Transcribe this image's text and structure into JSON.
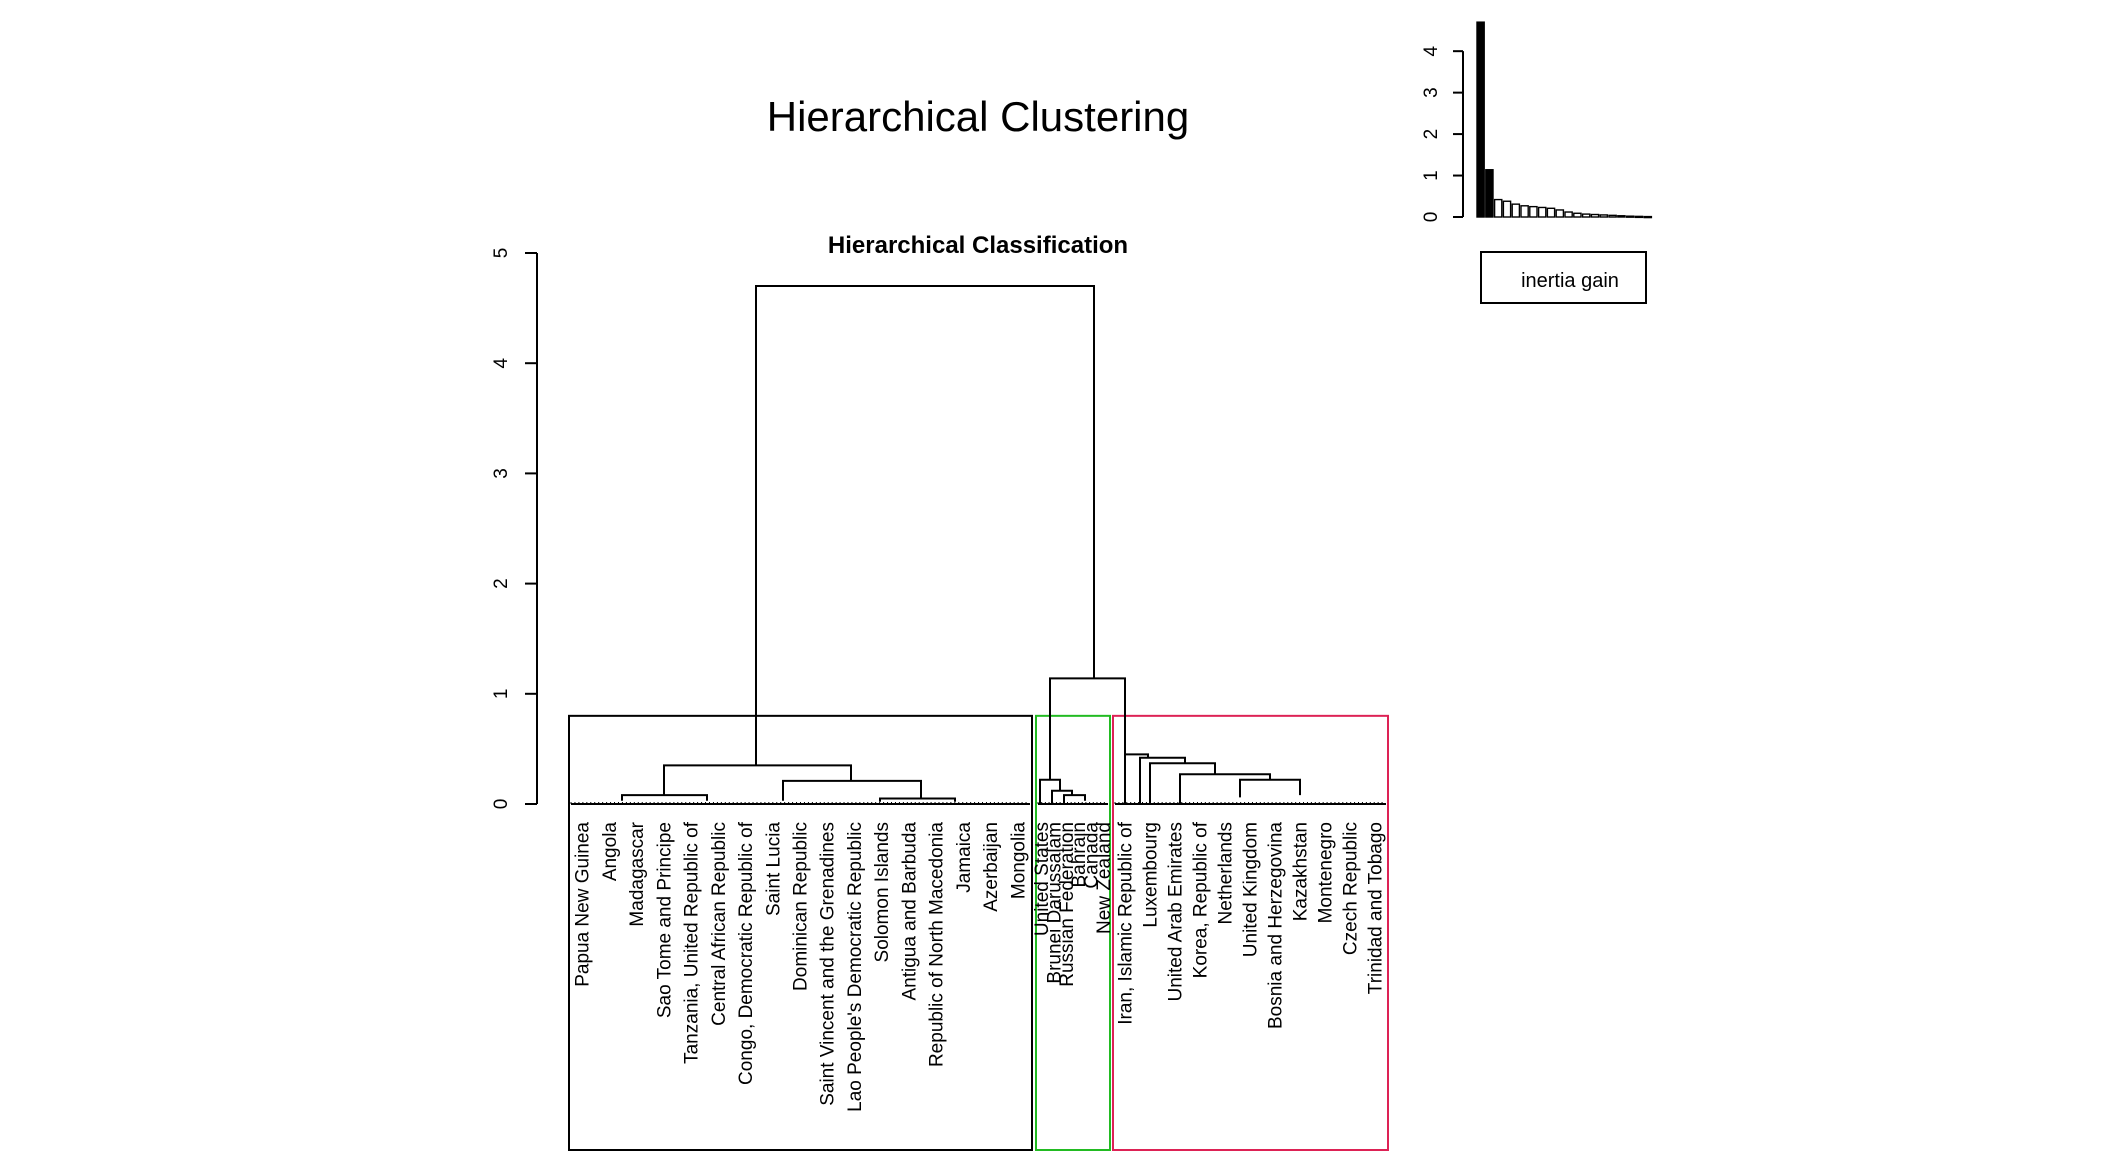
{
  "figure": {
    "title": "Hierarchical Clustering"
  },
  "chart_data": [
    {
      "type": "dendrogram",
      "title": "Hierarchical Classification",
      "ylim": [
        0,
        5
      ],
      "yticks": [
        0,
        1,
        2,
        3,
        4,
        5
      ],
      "cut_height": 0.8,
      "merges": [
        {
          "height": 4.7,
          "between": [
            "cluster 1",
            "clusters 2+3"
          ]
        },
        {
          "height": 1.14,
          "between": [
            "cluster 2",
            "cluster 3"
          ]
        },
        {
          "height": 0.35,
          "within": "cluster 1"
        },
        {
          "height": 0.45,
          "within": "cluster 3"
        }
      ],
      "clusters": [
        {
          "id": 1,
          "color": "#000000",
          "leaves": [
            "Papua New Guinea",
            "Angola",
            "Madagascar",
            "Sao Tome and Principe",
            "Tanzania, United Republic of",
            "Central African Republic",
            "Congo, Democratic Republic of",
            "Saint Lucia",
            "Dominican Republic",
            "Saint Vincent and the Grenadines",
            "Lao People's Democratic Republic",
            "Solomon Islands",
            "Antigua and Barbuda",
            "Republic of North Macedonia",
            "Jamaica",
            "Azerbaijan",
            "Mongolia"
          ]
        },
        {
          "id": 2,
          "color": "#22bb22",
          "leaves": [
            "United States",
            "Brunei Darussalam",
            "Russian Federation",
            "Bahrain",
            "Canada",
            "New Zealand"
          ]
        },
        {
          "id": 3,
          "color": "#dd2255",
          "leaves": [
            "Iran, Islamic Republic of",
            "Luxembourg",
            "United Arab Emirates",
            "Korea, Republic of",
            "Netherlands",
            "United Kingdom",
            "Bosnia and Herzegovina",
            "Kazakhstan",
            "Montenegro",
            "Czech Republic",
            "Trinidad and Tobago"
          ]
        }
      ]
    },
    {
      "type": "bar",
      "values": [
        4.7,
        1.14,
        0.42,
        0.38,
        0.31,
        0.27,
        0.25,
        0.23,
        0.21,
        0.17,
        0.12,
        0.09,
        0.07,
        0.06,
        0.05,
        0.04,
        0.03,
        0.02,
        0.015,
        0.01
      ],
      "highlight_count": 2,
      "ylim": [
        0,
        4.8
      ],
      "yticks": [
        0,
        1,
        2,
        3,
        4
      ],
      "legend": {
        "label": "inertia gain",
        "position": "bottom"
      }
    }
  ]
}
